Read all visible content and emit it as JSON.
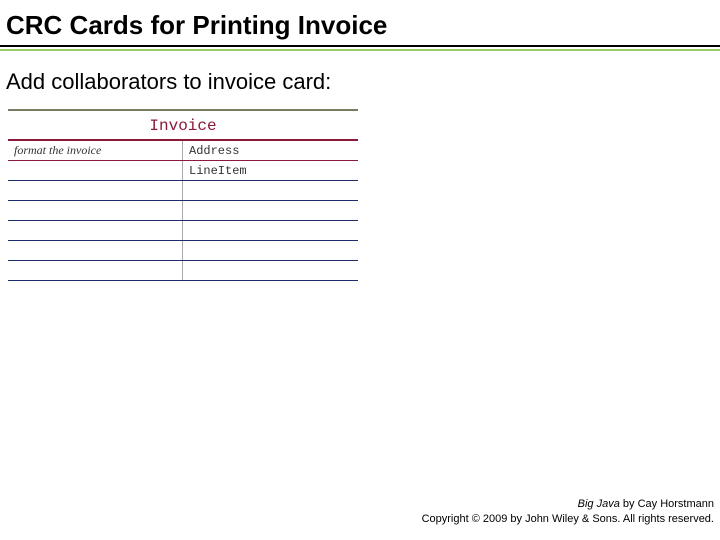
{
  "title": "CRC Cards for Printing Invoice",
  "subtitle": "Add collaborators to invoice card:",
  "card": {
    "className": "Invoice",
    "rows": [
      {
        "responsibility": "format the invoice",
        "collaborator": "Address"
      },
      {
        "responsibility": "",
        "collaborator": "LineItem"
      },
      {
        "responsibility": "",
        "collaborator": ""
      },
      {
        "responsibility": "",
        "collaborator": ""
      },
      {
        "responsibility": "",
        "collaborator": ""
      },
      {
        "responsibility": "",
        "collaborator": ""
      },
      {
        "responsibility": "",
        "collaborator": ""
      }
    ]
  },
  "footer": {
    "bookTitle": "Big Java",
    "byAuthor": " by Cay Horstmann",
    "copyright": "Copyright © 2009 by John Wiley & Sons. All rights reserved."
  },
  "colors": {
    "titleUnderlineTop": "#000000",
    "titleUnderlineBottom": "#99cc66",
    "cardTitleColor": "#8b1a3a",
    "rowLineBlue": "#1e2a6a",
    "rowLineRed": "#8b1a3a"
  }
}
